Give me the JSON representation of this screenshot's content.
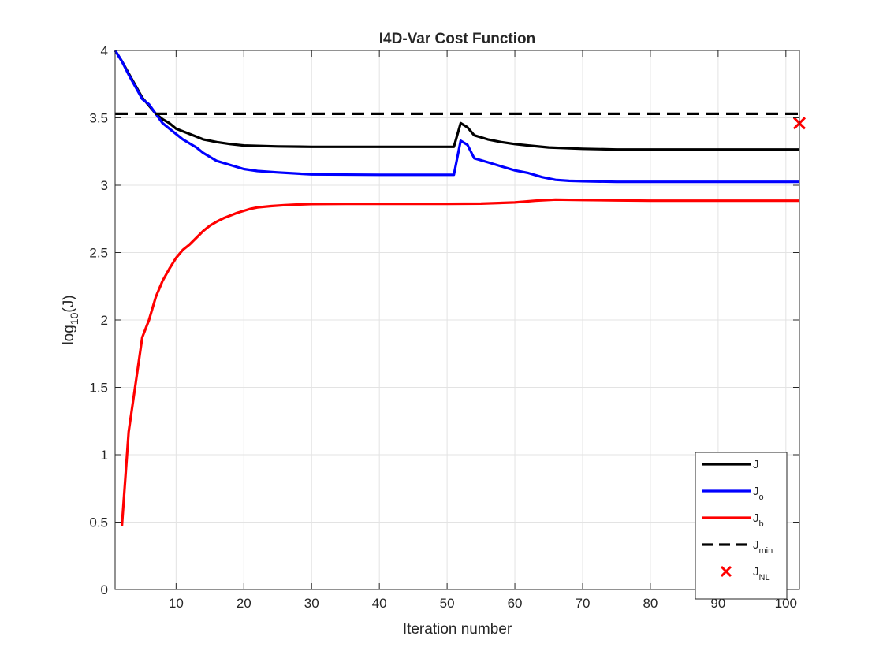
{
  "chart_data": {
    "type": "line",
    "title": "I4D-Var Cost Function",
    "xlabel": "Iteration number",
    "ylabel": {
      "base": "log",
      "sub": "10",
      "rest": "(J)"
    },
    "xlim": [
      1,
      102
    ],
    "ylim": [
      0,
      4
    ],
    "xticks": [
      10,
      20,
      30,
      40,
      50,
      60,
      70,
      80,
      90,
      100
    ],
    "yticks": [
      0,
      0.5,
      1,
      1.5,
      2,
      2.5,
      3,
      3.5,
      4
    ],
    "grid": true,
    "legend_position": "bottom-right",
    "series": [
      {
        "key": "J",
        "legend": {
          "main": "J",
          "sub": ""
        },
        "color": "#000000",
        "style": "solid",
        "x": [
          1,
          2,
          3,
          4,
          5,
          6,
          7,
          8,
          9,
          10,
          11,
          12,
          13,
          14,
          15,
          16,
          18,
          20,
          25,
          30,
          40,
          50,
          51,
          52,
          53,
          54,
          56,
          58,
          60,
          62,
          65,
          70,
          75,
          80,
          90,
          100,
          102
        ],
        "y": [
          4.0,
          3.92,
          3.83,
          3.74,
          3.65,
          3.59,
          3.53,
          3.49,
          3.46,
          3.42,
          3.4,
          3.38,
          3.36,
          3.34,
          3.33,
          3.32,
          3.305,
          3.295,
          3.288,
          3.285,
          3.285,
          3.285,
          3.285,
          3.46,
          3.43,
          3.37,
          3.34,
          3.32,
          3.305,
          3.295,
          3.28,
          3.27,
          3.265,
          3.265,
          3.265,
          3.265,
          3.265
        ]
      },
      {
        "key": "Jo",
        "legend": {
          "main": "J",
          "sub": "o"
        },
        "color": "#0000ff",
        "style": "solid",
        "x": [
          1,
          2,
          3,
          4,
          5,
          6,
          7,
          8,
          9,
          10,
          11,
          12,
          13,
          14,
          15,
          16,
          18,
          20,
          22,
          25,
          30,
          40,
          50,
          51,
          52,
          53,
          54,
          56,
          58,
          60,
          62,
          64,
          66,
          68,
          70,
          75,
          80,
          90,
          100,
          102
        ],
        "y": [
          4.0,
          3.92,
          3.82,
          3.73,
          3.64,
          3.6,
          3.53,
          3.46,
          3.42,
          3.38,
          3.34,
          3.31,
          3.28,
          3.24,
          3.21,
          3.18,
          3.15,
          3.12,
          3.105,
          3.095,
          3.08,
          3.077,
          3.077,
          3.077,
          3.33,
          3.3,
          3.2,
          3.17,
          3.14,
          3.11,
          3.09,
          3.06,
          3.04,
          3.033,
          3.03,
          3.025,
          3.025,
          3.025,
          3.025,
          3.025
        ]
      },
      {
        "key": "Jb",
        "legend": {
          "main": "J",
          "sub": "b"
        },
        "color": "#ff0000",
        "style": "solid",
        "x": [
          2,
          3,
          4,
          5,
          6,
          7,
          8,
          9,
          10,
          11,
          12,
          13,
          14,
          15,
          16,
          17,
          18,
          19,
          20,
          21,
          22,
          24,
          26,
          28,
          30,
          35,
          40,
          50,
          55,
          60,
          63,
          66,
          70,
          75,
          80,
          90,
          100,
          102
        ],
        "y": [
          0.47,
          1.17,
          1.52,
          1.87,
          2.0,
          2.17,
          2.29,
          2.38,
          2.46,
          2.52,
          2.56,
          2.61,
          2.66,
          2.7,
          2.73,
          2.755,
          2.775,
          2.795,
          2.81,
          2.825,
          2.835,
          2.845,
          2.852,
          2.857,
          2.86,
          2.862,
          2.862,
          2.862,
          2.863,
          2.872,
          2.885,
          2.893,
          2.89,
          2.887,
          2.885,
          2.885,
          2.885,
          2.885
        ]
      },
      {
        "key": "Jmin",
        "legend": {
          "main": "J",
          "sub": "min"
        },
        "color": "#000000",
        "style": "dashed",
        "x": [
          1,
          102
        ],
        "y": [
          3.53,
          3.53
        ]
      }
    ],
    "markers": [
      {
        "key": "JNL",
        "legend": {
          "main": "J",
          "sub": "NL"
        },
        "color": "#ff0000",
        "symbol": "x",
        "x": 102,
        "y": 3.46
      }
    ]
  }
}
